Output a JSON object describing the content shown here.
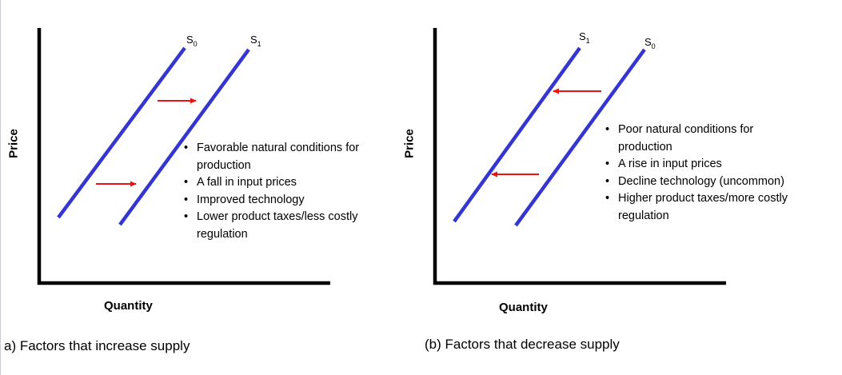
{
  "panels": [
    {
      "id": "a",
      "caption": "a) Factors that increase supply",
      "y_axis_label": "Price",
      "x_axis_label": "Quantity",
      "curves": [
        {
          "name": "S",
          "subscript": "0"
        },
        {
          "name": "S",
          "subscript": "1"
        }
      ],
      "shift_direction": "right",
      "factors": [
        "Favorable natural conditions for production",
        "A fall in input prices",
        "Improved technology",
        "Lower product taxes/less costly regulation"
      ]
    },
    {
      "id": "b",
      "caption": "(b) Factors that decrease supply",
      "y_axis_label": "Price",
      "x_axis_label": "Quantity",
      "curves": [
        {
          "name": "S",
          "subscript": "1"
        },
        {
          "name": "S",
          "subscript": "0"
        }
      ],
      "shift_direction": "left",
      "factors": [
        "Poor natural conditions for production",
        "A rise in input prices",
        "Decline technology (uncommon)",
        "Higher product taxes/more costly regulation"
      ]
    }
  ],
  "colors": {
    "curve": "#3535d0",
    "arrow": "#ee1111",
    "axis": "#000000"
  }
}
